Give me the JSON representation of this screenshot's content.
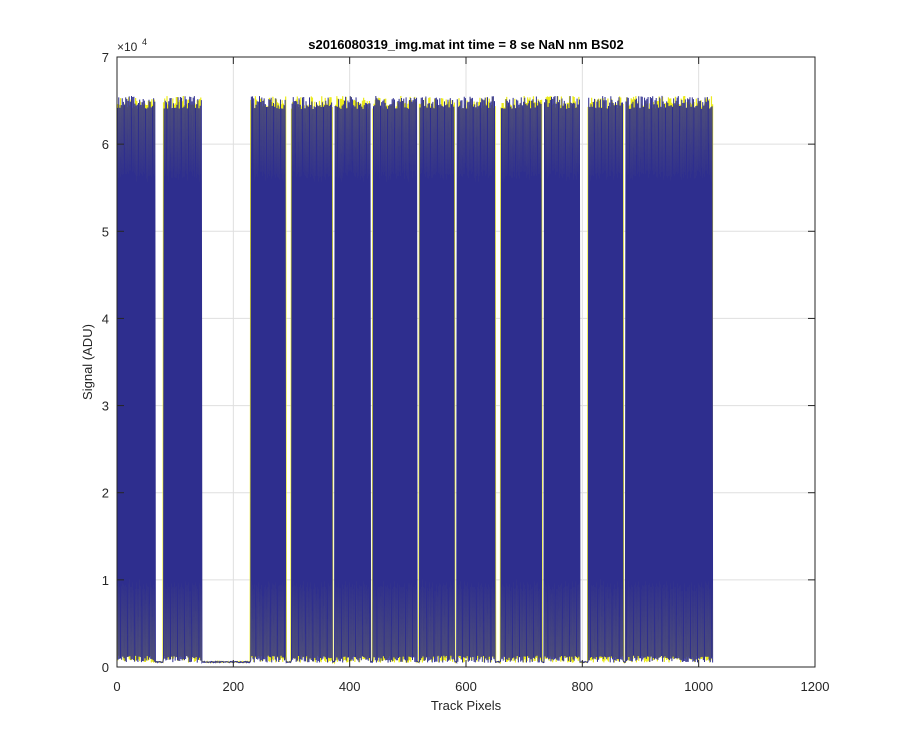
{
  "chart_data": {
    "type": "line",
    "title": "s2016080319_img.mat int time = 8 se  NaN nm BS02",
    "xlabel": "Track Pixels",
    "ylabel": "Signal (ADU)",
    "xlim": [
      0,
      1200
    ],
    "ylim": [
      0,
      70000
    ],
    "x_ticks": [
      "0",
      "200",
      "400",
      "600",
      "800",
      "1000",
      "1200"
    ],
    "y_ticks": [
      "0",
      "1",
      "2",
      "3",
      "4",
      "5",
      "6",
      "7"
    ],
    "y_exponent": {
      "base": "×10",
      "power": "4"
    },
    "grid": true,
    "series": [
      {
        "color": "#ecec1c",
        "segments": [
          [
            0,
            65
          ],
          [
            80,
            145
          ],
          [
            230,
            290
          ],
          [
            300,
            370
          ],
          [
            375,
            435
          ],
          [
            440,
            515
          ],
          [
            520,
            580
          ],
          [
            585,
            650
          ],
          [
            660,
            730
          ],
          [
            735,
            795
          ],
          [
            810,
            870
          ],
          [
            875,
            955
          ],
          [
            955,
            1025
          ]
        ],
        "max": 65535
      },
      {
        "color": "#2e2e8e",
        "segments": [
          [
            0,
            65
          ],
          [
            80,
            145
          ],
          [
            230,
            290
          ],
          [
            300,
            370
          ],
          [
            375,
            435
          ],
          [
            440,
            515
          ],
          [
            520,
            580
          ],
          [
            585,
            650
          ],
          [
            660,
            730
          ],
          [
            735,
            795
          ],
          [
            810,
            870
          ],
          [
            875,
            955
          ],
          [
            955,
            1025
          ]
        ],
        "max": 65535
      }
    ],
    "baseline": 500,
    "x_max_data": 1024
  }
}
